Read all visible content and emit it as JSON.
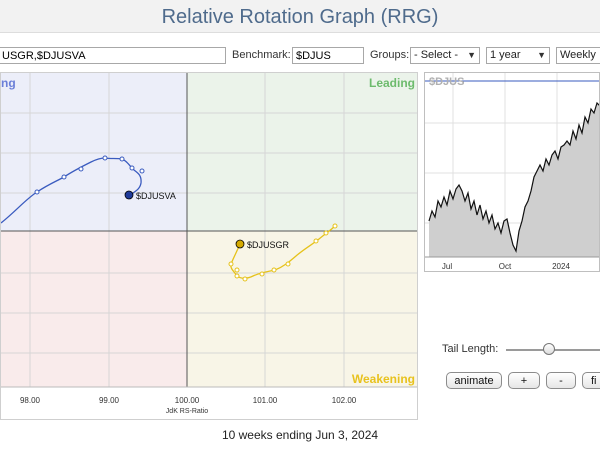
{
  "title": "Relative Rotation Graph (RRG)",
  "toolbar": {
    "symbols_value": "USGR,$DJUSVA",
    "benchmark_label": "Benchmark:",
    "benchmark_value": "$DJUS",
    "groups_label": "Groups:",
    "groups_value": "- Select -",
    "period_value": "1 year",
    "frequency_value": "Weekly"
  },
  "rrg": {
    "quadrants": {
      "improving": "ng",
      "leading": "Leading",
      "lagging": "",
      "weakening": "Weakening"
    },
    "colors": {
      "improving": "#eceef9",
      "leading": "#ebf3ea",
      "lagging": "#f9ebeb",
      "weakening": "#f8f5e7"
    },
    "x_axis": {
      "title": "JdK RS-Ratio",
      "ticks": [
        "98.00",
        "99.00",
        "100.00",
        "101.00",
        "102.00"
      ]
    },
    "series": [
      {
        "name": "$DJUSVA",
        "color": "#3a5bbf",
        "head_color": "#1f3a99"
      },
      {
        "name": "$DJUSGR",
        "color": "#e6c21a",
        "head_color": "#d4a900"
      }
    ]
  },
  "mini_chart": {
    "symbol": "$DJUS",
    "x_labels": [
      "Jul",
      "Oct",
      "2024"
    ]
  },
  "controls": {
    "tail_length_label": "Tail Length:",
    "animate_label": "animate",
    "plus_label": "+",
    "minus_label": "-",
    "fit_label": "fi"
  },
  "footer": "10 weeks ending Jun 3, 2024"
}
